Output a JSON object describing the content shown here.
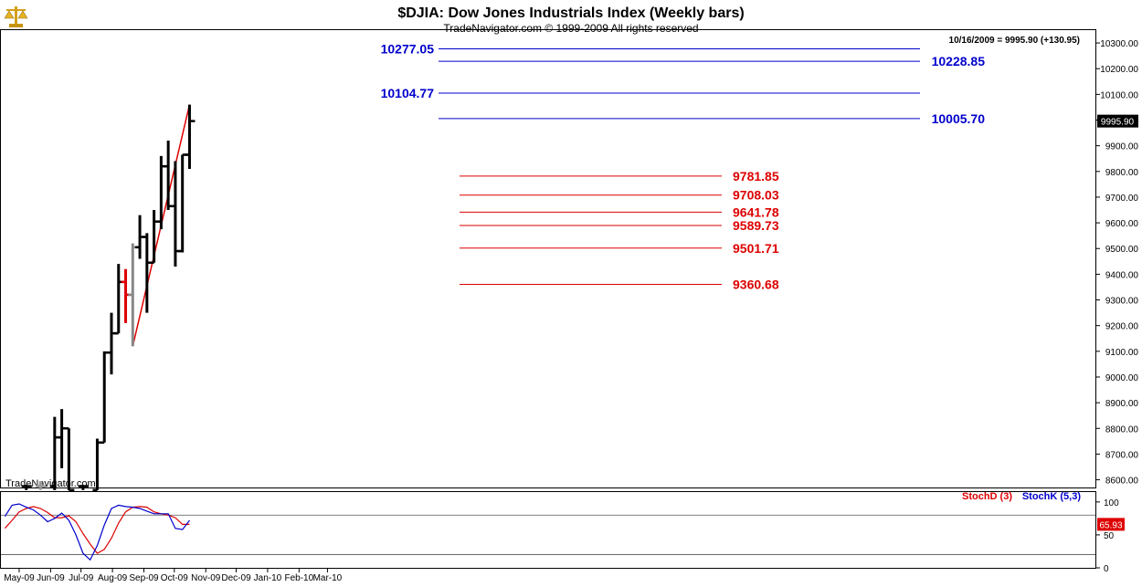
{
  "header": {
    "title": "$DJIA:  Dow Jones Industrials Index  (Weekly bars)",
    "subtitle": "TradeNavigator.com © 1999-2009 All rights reserved",
    "last_bar_info": "10/16/2009 = 9995.90 (+130.95)",
    "watermark": "TradeNavigator.com",
    "logo_icon": "scales-icon"
  },
  "chart_data": [
    {
      "type": "ohlc",
      "ylim": [
        8570,
        10350
      ],
      "y_ticks": [
        8600,
        8700,
        8800,
        8900,
        9000,
        9100,
        9200,
        9300,
        9400,
        9500,
        9600,
        9700,
        9800,
        9900,
        10000,
        10100,
        10200,
        10300
      ],
      "y_tick_labels": [
        "8600.00",
        "8700.00",
        "8800.00",
        "8900.00",
        "9000.00",
        "9100.00",
        "9200.00",
        "9300.00",
        "9400.00",
        "9500.00",
        "9600.00",
        "9700.00",
        "9800.00",
        "9900.00",
        "10000.00",
        "10100.00",
        "10200.00",
        "10300.00"
      ],
      "x_range": [
        "2009-04-13",
        "2010-03-15"
      ],
      "x_ticks": [
        {
          "date": "2009-05-01",
          "label": "May-09"
        },
        {
          "date": "2009-06-01",
          "label": "Jun-09"
        },
        {
          "date": "2009-07-01",
          "label": "Jul-09"
        },
        {
          "date": "2009-08-01",
          "label": "Aug-09"
        },
        {
          "date": "2009-09-01",
          "label": "Sep-09"
        },
        {
          "date": "2009-10-01",
          "label": "Oct-09"
        },
        {
          "date": "2009-11-01",
          "label": "Nov-09"
        },
        {
          "date": "2009-12-01",
          "label": "Dec-09"
        },
        {
          "date": "2010-01-01",
          "label": "Jan-10"
        },
        {
          "date": "2010-02-01",
          "label": "Feb-10"
        },
        {
          "date": "2010-03-01",
          "label": "Mar-10"
        }
      ],
      "bars": [
        {
          "date": "2009-05-08",
          "open": 8575,
          "high": 8580,
          "low": 8560,
          "close": 8575,
          "color": "#000000"
        },
        {
          "date": "2009-05-22",
          "open": 8575,
          "high": 8595,
          "low": 8560,
          "close": 8575,
          "color": "#999999"
        },
        {
          "date": "2009-06-05",
          "open": 8575,
          "high": 8845,
          "low": 8560,
          "close": 8765,
          "color": "#000000"
        },
        {
          "date": "2009-06-12",
          "open": 8765,
          "high": 8875,
          "low": 8645,
          "close": 8800,
          "color": "#000000"
        },
        {
          "date": "2009-06-19",
          "open": 8800,
          "high": 8800,
          "low": 8560,
          "close": 8560,
          "color": "#000000"
        },
        {
          "date": "2009-07-03",
          "open": 8575,
          "high": 8580,
          "low": 8560,
          "close": 8575,
          "color": "#000000"
        },
        {
          "date": "2009-07-17",
          "open": 8560,
          "high": 8760,
          "low": 8560,
          "close": 8745,
          "color": "#000000"
        },
        {
          "date": "2009-07-24",
          "open": 8745,
          "high": 9100,
          "low": 8745,
          "close": 9095,
          "color": "#000000"
        },
        {
          "date": "2009-07-31",
          "open": 9095,
          "high": 9250,
          "low": 9010,
          "close": 9170,
          "color": "#000000"
        },
        {
          "date": "2009-08-07",
          "open": 9170,
          "high": 9440,
          "low": 9170,
          "close": 9370,
          "color": "#000000"
        },
        {
          "date": "2009-08-14",
          "open": 9370,
          "high": 9420,
          "low": 9210,
          "close": 9320,
          "color": "#dd0000"
        },
        {
          "date": "2009-08-21",
          "open": 9320,
          "high": 9520,
          "low": 9120,
          "close": 9505,
          "color": "#888888"
        },
        {
          "date": "2009-08-28",
          "open": 9505,
          "high": 9630,
          "low": 9460,
          "close": 9545,
          "color": "#000000"
        },
        {
          "date": "2009-09-04",
          "open": 9545,
          "high": 9560,
          "low": 9250,
          "close": 9445,
          "color": "#000000"
        },
        {
          "date": "2009-09-11",
          "open": 9445,
          "high": 9650,
          "low": 9445,
          "close": 9605,
          "color": "#000000"
        },
        {
          "date": "2009-09-18",
          "open": 9605,
          "high": 9860,
          "low": 9575,
          "close": 9820,
          "color": "#000000"
        },
        {
          "date": "2009-09-25",
          "open": 9820,
          "high": 9920,
          "low": 9650,
          "close": 9665,
          "color": "#000000"
        },
        {
          "date": "2009-10-02",
          "open": 9665,
          "high": 9840,
          "low": 9430,
          "close": 9490,
          "color": "#000000"
        },
        {
          "date": "2009-10-09",
          "open": 9490,
          "high": 9865,
          "low": 9485,
          "close": 9865,
          "color": "#000000"
        },
        {
          "date": "2009-10-16",
          "open": 9865,
          "high": 10060,
          "low": 9810,
          "close": 9996,
          "color": "#000000"
        }
      ],
      "last_value_label": "9995.90",
      "blue_levels": [
        {
          "value": 10277.05,
          "label": "10277.05",
          "label_side": "left"
        },
        {
          "value": 10228.85,
          "label": "10228.85",
          "label_side": "right"
        },
        {
          "value": 10104.77,
          "label": "10104.77",
          "label_side": "left"
        },
        {
          "value": 10005.7,
          "label": "10005.70",
          "label_side": "right"
        }
      ],
      "red_levels": [
        {
          "value": 9781.85,
          "label": "9781.85"
        },
        {
          "value": 9708.03,
          "label": "9708.03"
        },
        {
          "value": 9641.78,
          "label": "9641.78"
        },
        {
          "value": 9589.73,
          "label": "9589.73"
        },
        {
          "value": 9501.71,
          "label": "9501.71"
        },
        {
          "value": 9360.68,
          "label": "9360.68"
        }
      ],
      "trend_lines": [
        {
          "from": {
            "date": "2009-08-21",
            "value": 9120
          },
          "to": {
            "date": "2009-10-16",
            "value": 10060
          },
          "color": "#dd0000"
        },
        {
          "from": {
            "date": "2009-08-21",
            "value": 9120
          },
          "to": {
            "date": "2009-08-21",
            "value": 9520
          },
          "color": "#999999"
        }
      ],
      "colors": {
        "blue": "#0000cc",
        "red": "#dd0000",
        "bars": "#000000"
      }
    },
    {
      "type": "line",
      "title": "",
      "legend": [
        {
          "name": "StochD (3)",
          "color": "#dd0000"
        },
        {
          "name": "StochK (5,3)",
          "color": "#0000cc"
        }
      ],
      "ylim": [
        0,
        115
      ],
      "y_ticks": [
        0,
        50,
        100
      ],
      "y_tick_labels": [
        "0",
        "50",
        "100"
      ],
      "ref_lines": [
        20,
        80
      ],
      "last_value_label": "65.93",
      "series": [
        {
          "name": "StochD (3)",
          "color": "#dd0000",
          "points": [
            {
              "date": "2009-04-17",
              "value": 60
            },
            {
              "date": "2009-04-24",
              "value": 72
            },
            {
              "date": "2009-05-01",
              "value": 85
            },
            {
              "date": "2009-05-08",
              "value": 90
            },
            {
              "date": "2009-05-15",
              "value": 93
            },
            {
              "date": "2009-05-22",
              "value": 90
            },
            {
              "date": "2009-05-29",
              "value": 84
            },
            {
              "date": "2009-06-05",
              "value": 76
            },
            {
              "date": "2009-06-12",
              "value": 76
            },
            {
              "date": "2009-06-19",
              "value": 79
            },
            {
              "date": "2009-06-26",
              "value": 70
            },
            {
              "date": "2009-07-03",
              "value": 52
            },
            {
              "date": "2009-07-10",
              "value": 36
            },
            {
              "date": "2009-07-17",
              "value": 22
            },
            {
              "date": "2009-07-24",
              "value": 28
            },
            {
              "date": "2009-07-31",
              "value": 45
            },
            {
              "date": "2009-08-07",
              "value": 68
            },
            {
              "date": "2009-08-14",
              "value": 85
            },
            {
              "date": "2009-08-21",
              "value": 92
            },
            {
              "date": "2009-08-28",
              "value": 93
            },
            {
              "date": "2009-09-04",
              "value": 92
            },
            {
              "date": "2009-09-11",
              "value": 85
            },
            {
              "date": "2009-09-18",
              "value": 82
            },
            {
              "date": "2009-09-25",
              "value": 80
            },
            {
              "date": "2009-10-02",
              "value": 76
            },
            {
              "date": "2009-10-09",
              "value": 66
            },
            {
              "date": "2009-10-16",
              "value": 66
            }
          ]
        },
        {
          "name": "StochK (5,3)",
          "color": "#0000cc",
          "points": [
            {
              "date": "2009-04-17",
              "value": 78
            },
            {
              "date": "2009-04-24",
              "value": 95
            },
            {
              "date": "2009-05-01",
              "value": 97
            },
            {
              "date": "2009-05-08",
              "value": 92
            },
            {
              "date": "2009-05-15",
              "value": 88
            },
            {
              "date": "2009-05-22",
              "value": 80
            },
            {
              "date": "2009-05-29",
              "value": 70
            },
            {
              "date": "2009-06-05",
              "value": 75
            },
            {
              "date": "2009-06-12",
              "value": 83
            },
            {
              "date": "2009-06-19",
              "value": 72
            },
            {
              "date": "2009-06-26",
              "value": 50
            },
            {
              "date": "2009-07-03",
              "value": 22
            },
            {
              "date": "2009-07-10",
              "value": 12
            },
            {
              "date": "2009-07-17",
              "value": 34
            },
            {
              "date": "2009-07-24",
              "value": 65
            },
            {
              "date": "2009-07-31",
              "value": 90
            },
            {
              "date": "2009-08-07",
              "value": 95
            },
            {
              "date": "2009-08-14",
              "value": 93
            },
            {
              "date": "2009-08-21",
              "value": 92
            },
            {
              "date": "2009-08-28",
              "value": 90
            },
            {
              "date": "2009-09-04",
              "value": 86
            },
            {
              "date": "2009-09-11",
              "value": 82
            },
            {
              "date": "2009-09-18",
              "value": 82
            },
            {
              "date": "2009-09-25",
              "value": 82
            },
            {
              "date": "2009-10-02",
              "value": 60
            },
            {
              "date": "2009-10-09",
              "value": 58
            },
            {
              "date": "2009-10-16",
              "value": 72
            }
          ]
        }
      ]
    }
  ]
}
